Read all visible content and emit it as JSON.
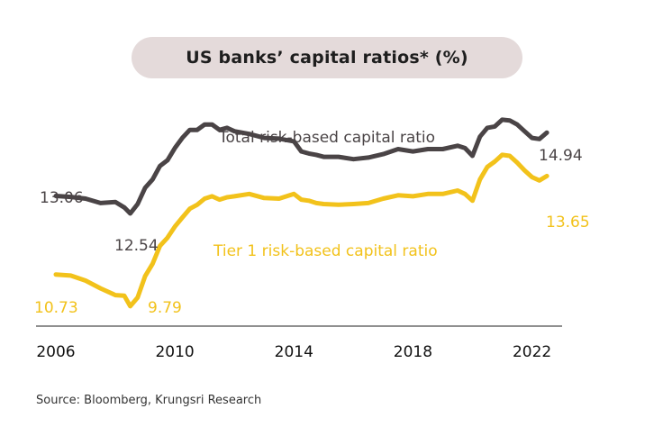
{
  "title": "US banks’ capital ratios* (%)",
  "source": "Source: Bloomberg, Krungsri Research",
  "colors": {
    "total": "#4a4446",
    "tier1": "#f2c21b",
    "title_bg": "#e4dada",
    "axis": "#222222"
  },
  "chart_data": {
    "type": "line",
    "title": "US banks’ capital ratios* (%)",
    "xlabel": "",
    "ylabel": "",
    "xlim": [
      2006,
      2022.8
    ],
    "ylim": [
      9.2,
      16.2
    ],
    "x_ticks": [
      2006,
      2010,
      2014,
      2018,
      2022
    ],
    "x_tick_labels": [
      "2006",
      "2010",
      "2014",
      "2018",
      "2022"
    ],
    "grid": false,
    "legend": "inline labels",
    "series": [
      {
        "name": "Total risk-based capital ratio",
        "color": "#4a4446",
        "x": [
          2006,
          2006.5,
          2007,
          2007.5,
          2008,
          2008.3,
          2008.5,
          2008.75,
          2009,
          2009.25,
          2009.5,
          2009.75,
          2010,
          2010.25,
          2010.5,
          2010.75,
          2011,
          2011.25,
          2011.5,
          2011.75,
          2012,
          2012.5,
          2013,
          2013.5,
          2014,
          2014.25,
          2014.5,
          2014.75,
          2015,
          2015.5,
          2016,
          2016.5,
          2017,
          2017.5,
          2018,
          2018.5,
          2019,
          2019.5,
          2019.75,
          2020,
          2020.25,
          2020.5,
          2020.75,
          2021,
          2021.25,
          2021.5,
          2021.75,
          2022,
          2022.25,
          2022.5
        ],
        "y": [
          13.06,
          13.03,
          12.98,
          12.85,
          12.88,
          12.72,
          12.54,
          12.82,
          13.3,
          13.55,
          13.95,
          14.12,
          14.48,
          14.78,
          15.02,
          15.02,
          15.18,
          15.18,
          15.02,
          15.08,
          14.98,
          14.9,
          14.78,
          14.76,
          14.68,
          14.38,
          14.32,
          14.28,
          14.22,
          14.22,
          14.15,
          14.2,
          14.3,
          14.45,
          14.38,
          14.45,
          14.45,
          14.55,
          14.48,
          14.25,
          14.82,
          15.08,
          15.12,
          15.32,
          15.3,
          15.18,
          14.98,
          14.78,
          14.75,
          14.94
        ]
      },
      {
        "name": "Tier 1 risk-based capital ratio",
        "color": "#f2c21b",
        "x": [
          2006,
          2006.5,
          2007,
          2007.5,
          2008,
          2008.3,
          2008.5,
          2008.75,
          2009,
          2009.25,
          2009.5,
          2009.75,
          2010,
          2010.25,
          2010.5,
          2010.75,
          2011,
          2011.25,
          2011.5,
          2011.75,
          2012,
          2012.5,
          2013,
          2013.5,
          2014,
          2014.25,
          2014.5,
          2014.75,
          2015,
          2015.5,
          2016,
          2016.5,
          2017,
          2017.5,
          2018,
          2018.5,
          2019,
          2019.5,
          2019.75,
          2020,
          2020.25,
          2020.5,
          2020.75,
          2021,
          2021.25,
          2021.5,
          2021.75,
          2022,
          2022.25,
          2022.5
        ],
        "y": [
          10.73,
          10.7,
          10.55,
          10.32,
          10.12,
          10.1,
          9.79,
          10.05,
          10.68,
          11.05,
          11.58,
          11.82,
          12.15,
          12.42,
          12.68,
          12.8,
          12.98,
          13.05,
          12.95,
          13.02,
          13.05,
          13.12,
          13.0,
          12.98,
          13.12,
          12.95,
          12.92,
          12.85,
          12.82,
          12.8,
          12.82,
          12.85,
          12.98,
          13.08,
          13.05,
          13.12,
          13.12,
          13.22,
          13.12,
          12.92,
          13.55,
          13.92,
          14.08,
          14.28,
          14.25,
          14.05,
          13.82,
          13.62,
          13.52,
          13.65
        ]
      }
    ],
    "annotations": [
      {
        "key": "total_start",
        "text": "13.06"
      },
      {
        "key": "total_2008",
        "text": "12.54"
      },
      {
        "key": "total_end",
        "text": "14.94"
      },
      {
        "key": "tier1_start",
        "text": "10.73"
      },
      {
        "key": "tier1_2008",
        "text": "9.79"
      },
      {
        "key": "tier1_end",
        "text": "13.65"
      }
    ]
  }
}
